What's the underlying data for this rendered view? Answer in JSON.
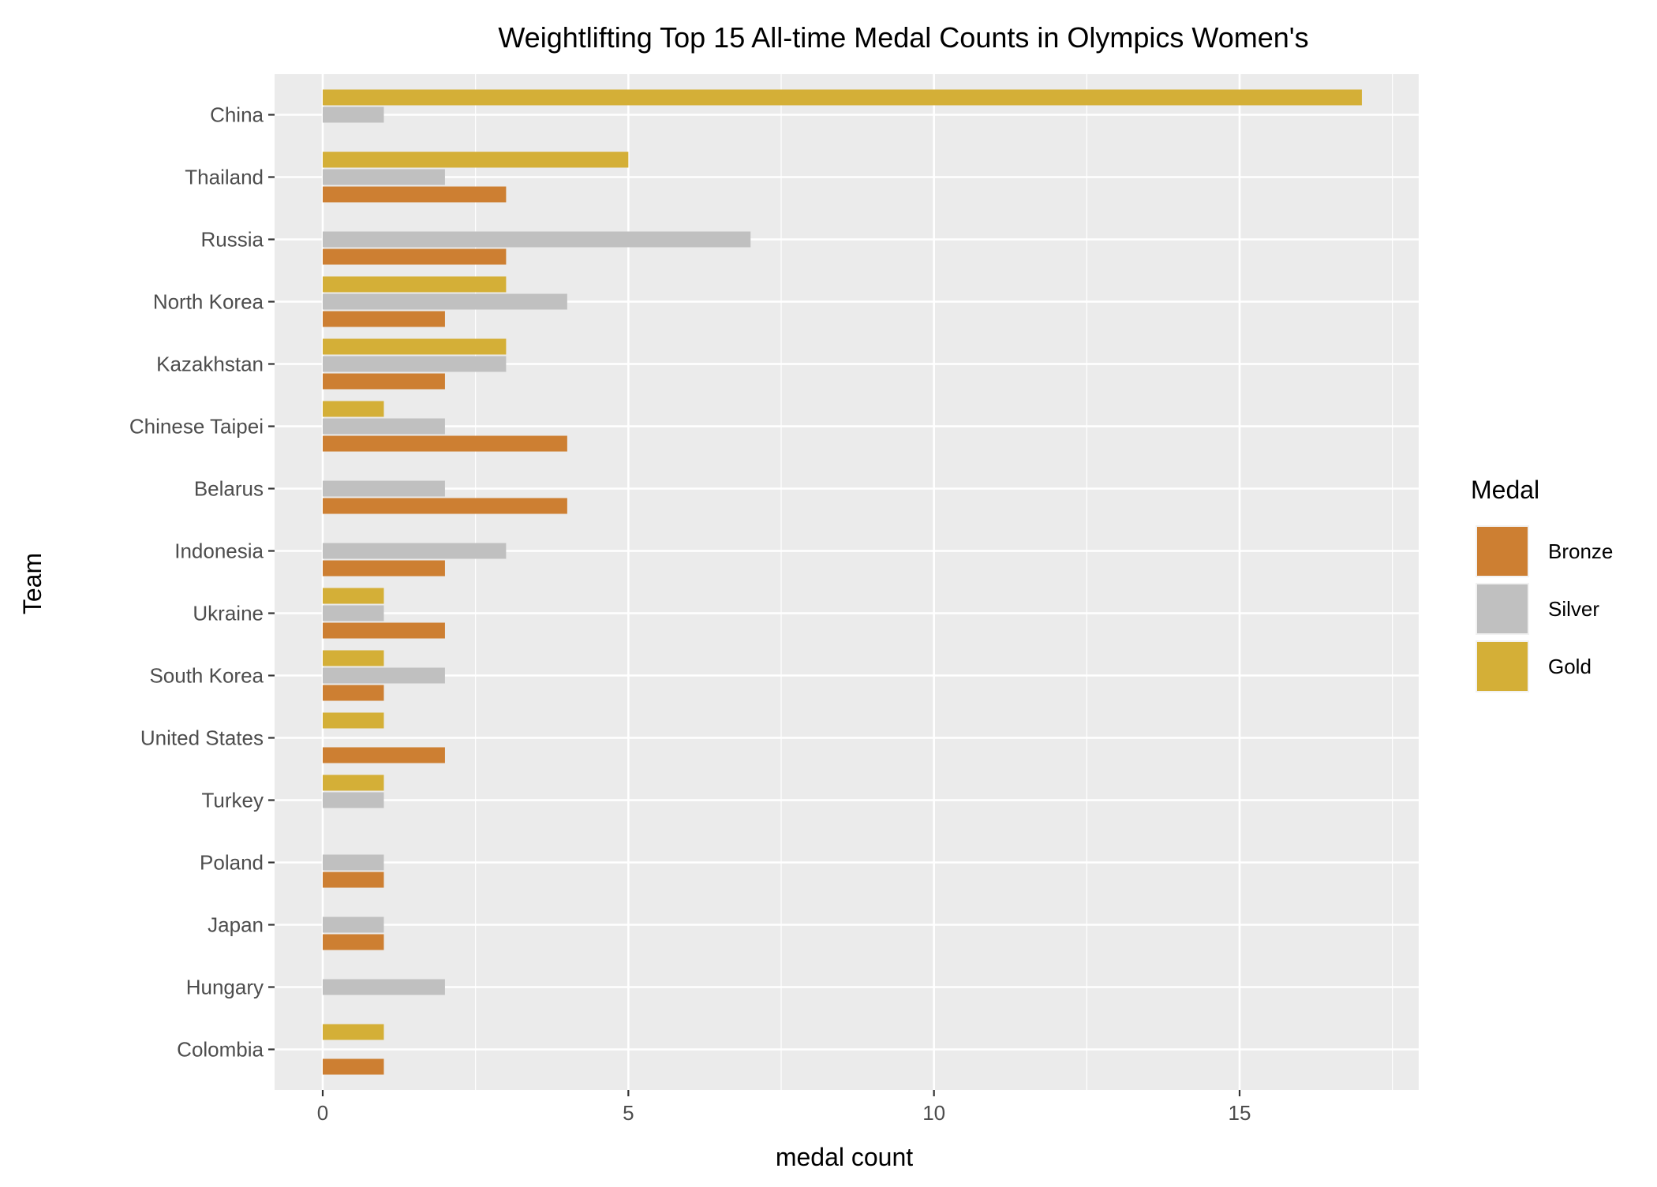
{
  "chart_data": {
    "type": "bar",
    "orientation": "horizontal",
    "title": "Weightlifting Top 15 All-time Medal Counts in Olympics Women's",
    "xlabel": "medal count",
    "ylabel": "Team",
    "xlim": [
      0,
      17.85
    ],
    "x_ticks": [
      0,
      5,
      10,
      15
    ],
    "grid": true,
    "legend": {
      "title": "Medal",
      "position": "right"
    },
    "categories": [
      "China",
      "Thailand",
      "Russia",
      "North Korea",
      "Kazakhstan",
      "Chinese Taipei",
      "Belarus",
      "Indonesia",
      "Ukraine",
      "South Korea",
      "United States",
      "Turkey",
      "Poland",
      "Japan",
      "Hungary",
      "Colombia"
    ],
    "series": [
      {
        "name": "Bronze",
        "color": "#CD7F32",
        "values": [
          0,
          3,
          3,
          2,
          2,
          4,
          4,
          2,
          2,
          1,
          2,
          0,
          1,
          1,
          0,
          1
        ]
      },
      {
        "name": "Silver",
        "color": "#C0C0C0",
        "values": [
          1,
          2,
          7,
          4,
          3,
          2,
          2,
          3,
          1,
          2,
          0,
          1,
          1,
          1,
          2,
          0
        ]
      },
      {
        "name": "Gold",
        "color": "#D4AF37",
        "values": [
          17,
          5,
          0,
          3,
          3,
          1,
          0,
          0,
          1,
          1,
          1,
          1,
          0,
          0,
          0,
          1
        ]
      }
    ],
    "background": "#EBEBEB"
  }
}
